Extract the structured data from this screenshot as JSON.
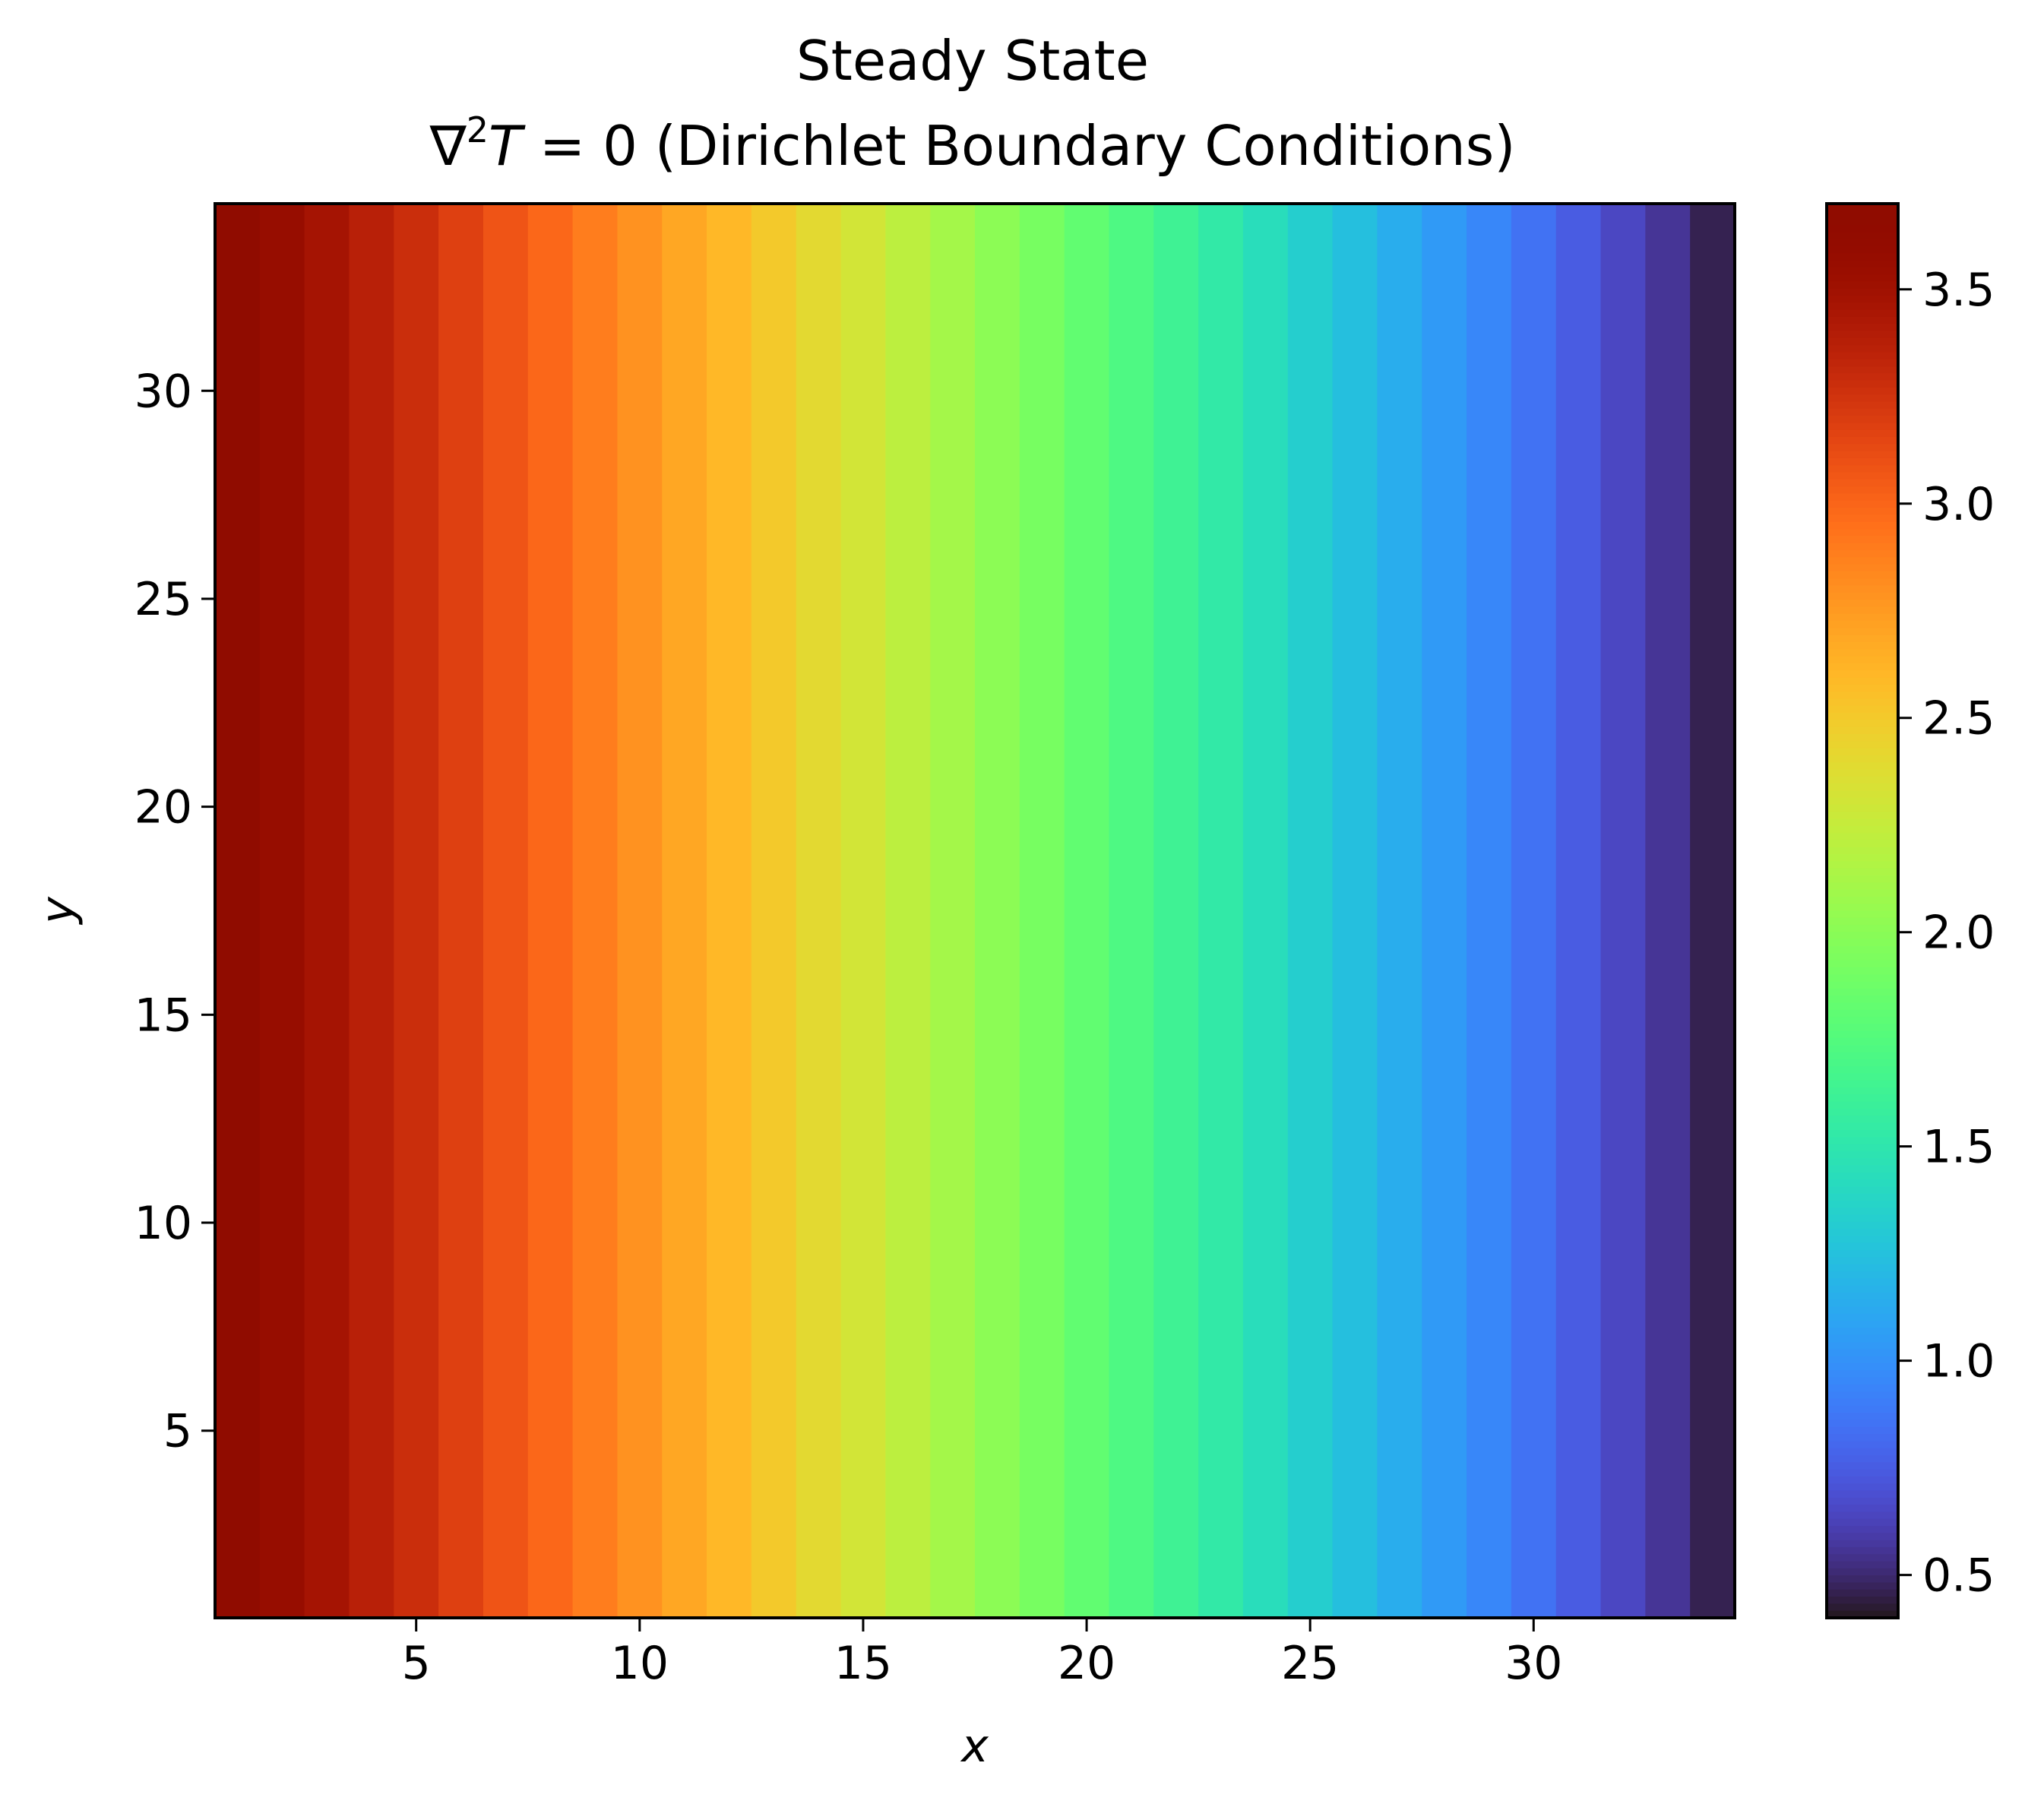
{
  "chart_data": {
    "type": "heatmap",
    "title": "Steady State",
    "subtitle_lead": "∇",
    "subtitle_sup": "2",
    "subtitle_var": "T",
    "subtitle_rest": " = 0 (Dirichlet Boundary Conditions)",
    "xlabel": "x",
    "ylabel": "y",
    "xlim": [
      0.5,
      34.5
    ],
    "ylim": [
      0.5,
      34.5
    ],
    "x_ticks": [
      5,
      10,
      15,
      20,
      25,
      30
    ],
    "y_ticks": [
      5,
      10,
      15,
      20,
      25,
      30
    ],
    "grid": false,
    "colormap": "turbo",
    "colorbar": {
      "vmin": 0.4,
      "vmax": 3.7,
      "ticks": [
        0.5,
        1.0,
        1.5,
        2.0,
        2.5,
        3.0,
        3.5
      ],
      "tick_labels": [
        "0.5",
        "1.0",
        "1.5",
        "2.0",
        "2.5",
        "3.0",
        "3.5"
      ]
    },
    "x": [
      1,
      2,
      3,
      4,
      5,
      6,
      7,
      8,
      9,
      10,
      11,
      12,
      13,
      14,
      15,
      16,
      17,
      18,
      19,
      20,
      21,
      22,
      23,
      24,
      25,
      26,
      27,
      28,
      29,
      30,
      31,
      32,
      33,
      34
    ],
    "column_values": [
      3.67,
      3.57,
      3.47,
      3.37,
      3.28,
      3.18,
      3.08,
      2.99,
      2.89,
      2.79,
      2.69,
      2.6,
      2.5,
      2.4,
      2.31,
      2.21,
      2.11,
      2.01,
      1.92,
      1.82,
      1.72,
      1.63,
      1.53,
      1.43,
      1.33,
      1.24,
      1.14,
      1.04,
      0.95,
      0.85,
      0.75,
      0.65,
      0.56,
      0.46
    ],
    "note_rows": "values constant along y for rows 1..34"
  }
}
